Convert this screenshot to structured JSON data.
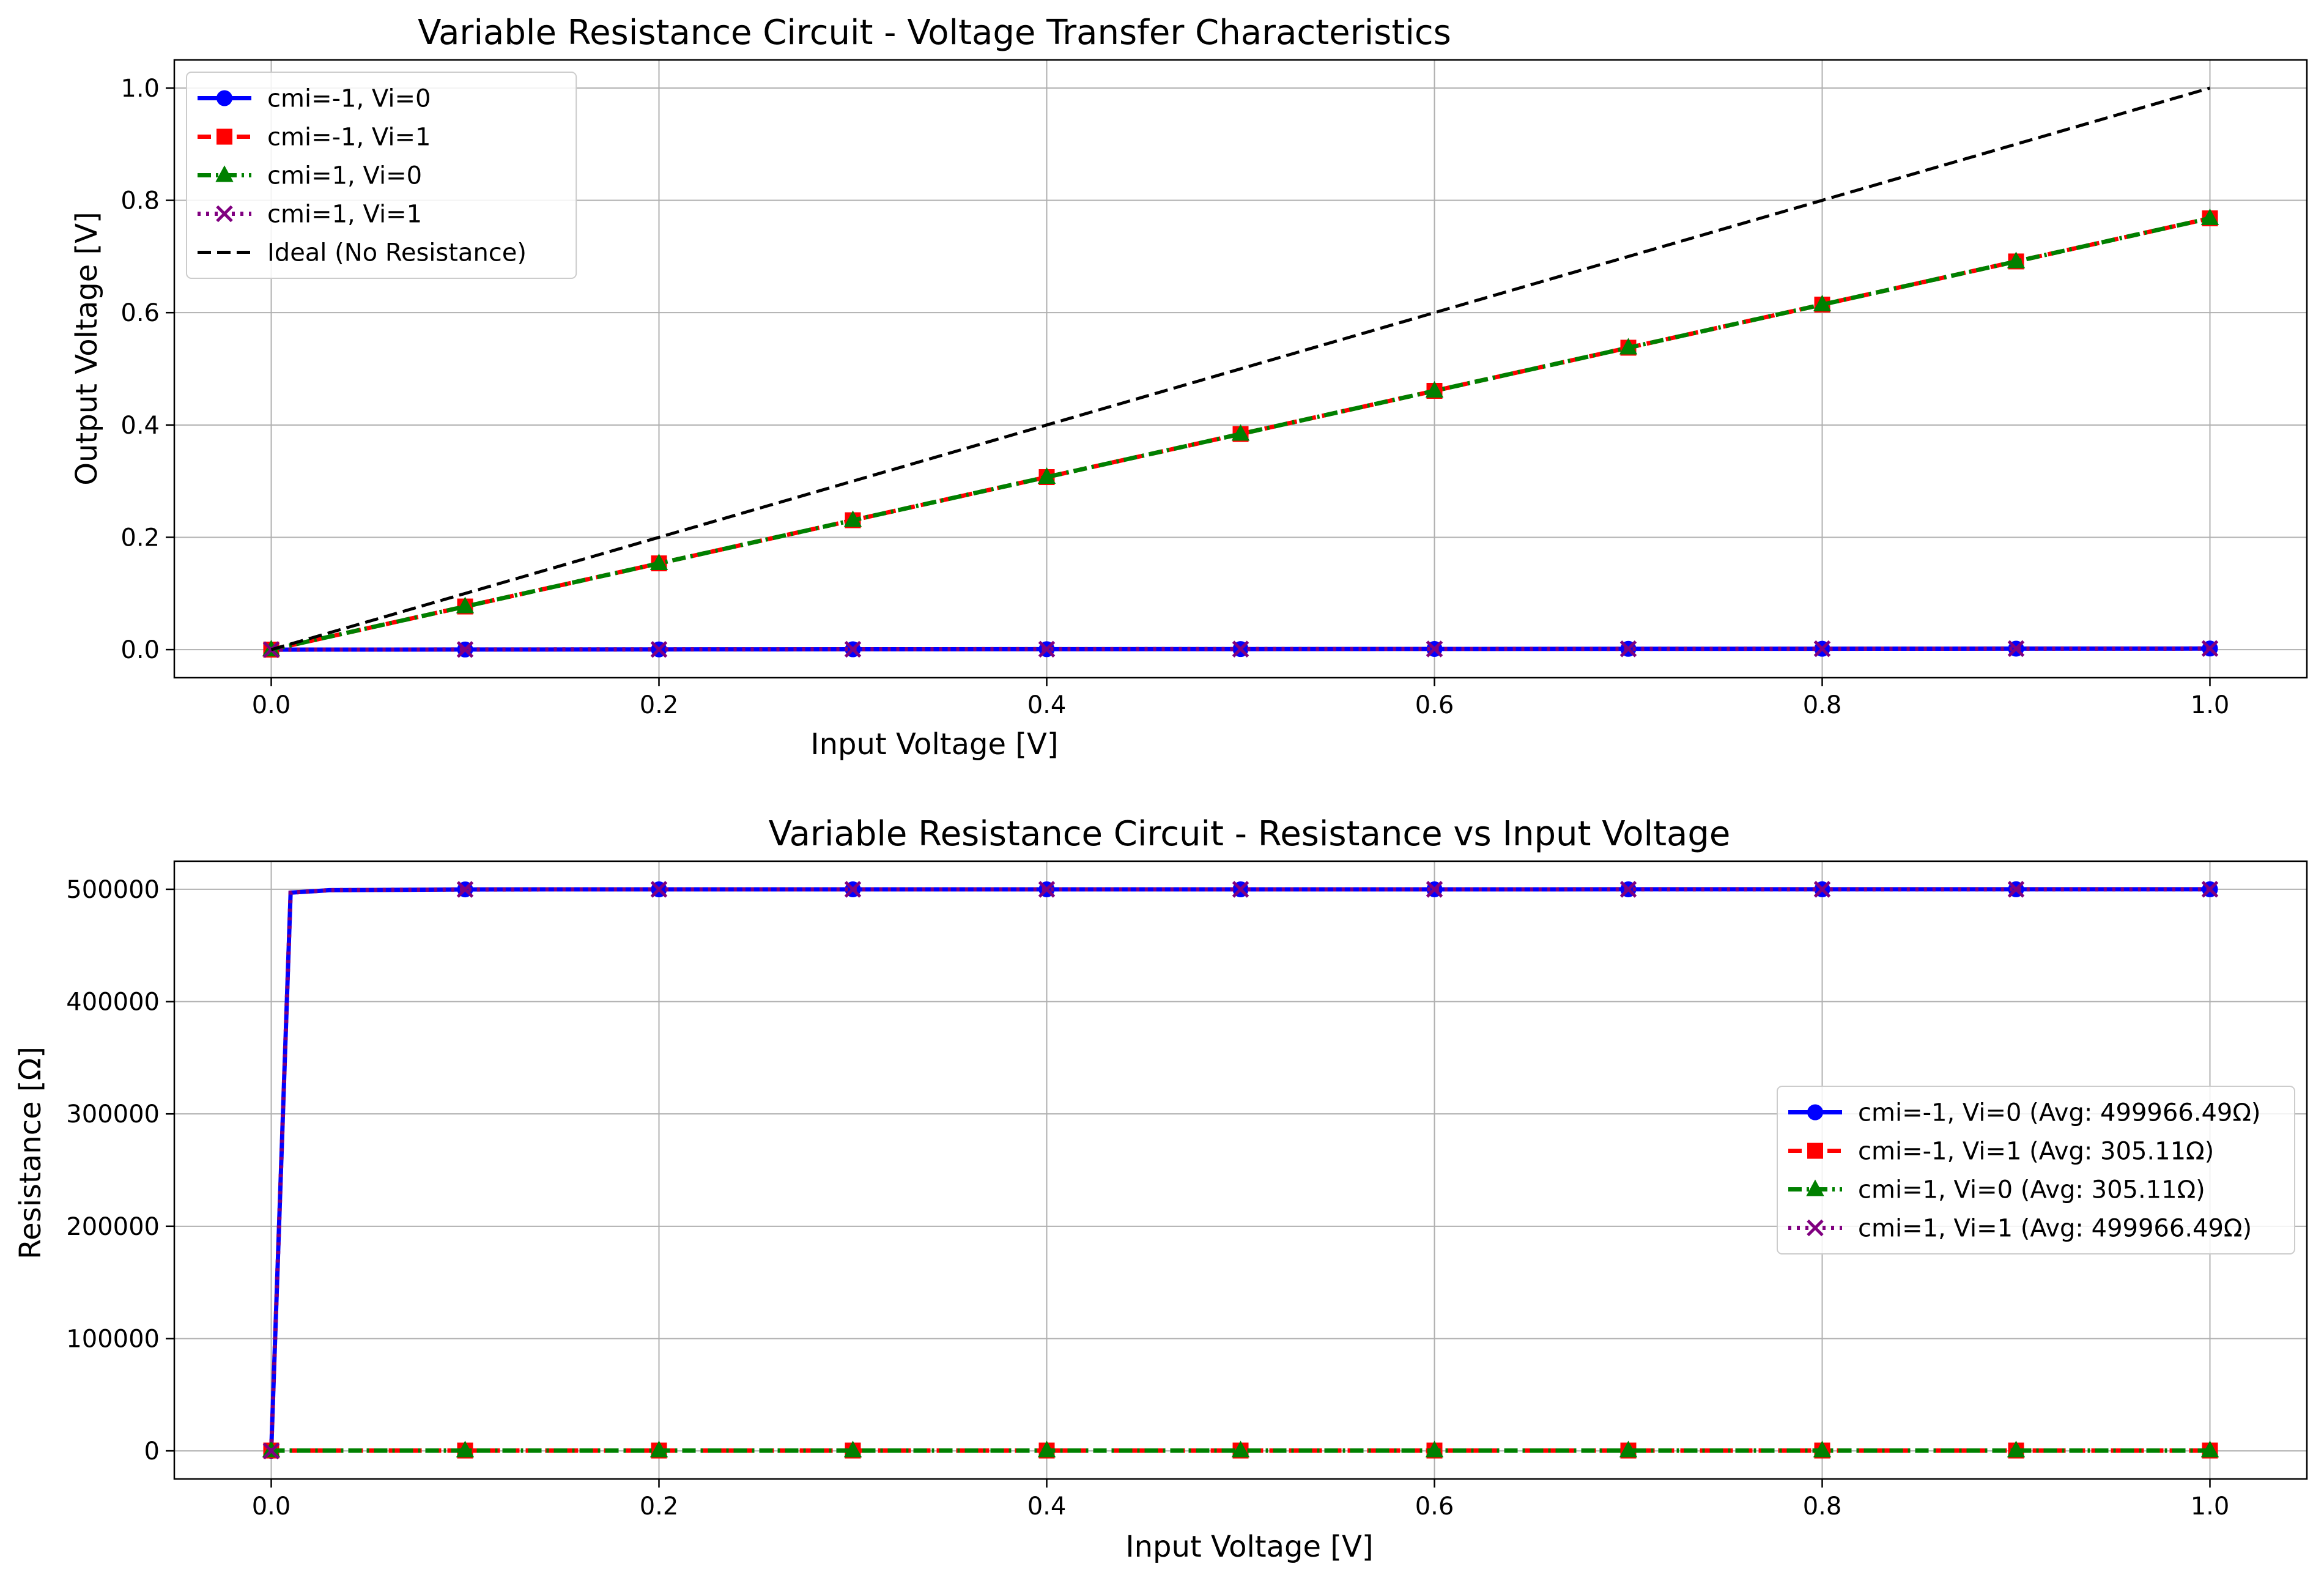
{
  "chart_data": [
    {
      "type": "line",
      "title": "Variable Resistance Circuit - Voltage Transfer Characteristics",
      "xlabel": "Input Voltage [V]",
      "ylabel": "Output Voltage [V]",
      "xlim": [
        -0.05,
        1.05
      ],
      "ylim": [
        -0.05,
        1.05
      ],
      "xticks": [
        0.0,
        0.2,
        0.4,
        0.6,
        0.8,
        1.0
      ],
      "xtick_labels": [
        "0.0",
        "0.2",
        "0.4",
        "0.6",
        "0.8",
        "1.0"
      ],
      "yticks": [
        0.0,
        0.2,
        0.4,
        0.6,
        0.8,
        1.0
      ],
      "ytick_labels": [
        "0.0",
        "0.2",
        "0.4",
        "0.6",
        "0.8",
        "1.0"
      ],
      "grid": true,
      "legend_position": "upper-left",
      "series": [
        {
          "name": "cmi=-1, Vi=0",
          "color": "#0000ff",
          "marker": "circle",
          "linestyle": "solid",
          "x": [
            0.0,
            0.1,
            0.2,
            0.3,
            0.4,
            0.5,
            0.6,
            0.7,
            0.8,
            0.9,
            1.0
          ],
          "y": [
            0.0,
            0.0002,
            0.0004,
            0.0006,
            0.0008,
            0.001,
            0.0012,
            0.0014,
            0.0016,
            0.0018,
            0.002
          ]
        },
        {
          "name": "cmi=-1, Vi=1",
          "color": "#ff0000",
          "marker": "square",
          "linestyle": "dashed",
          "x": [
            0.0,
            0.1,
            0.2,
            0.3,
            0.4,
            0.5,
            0.6,
            0.7,
            0.8,
            0.9,
            1.0
          ],
          "y": [
            0.0,
            0.0768,
            0.1536,
            0.2304,
            0.3072,
            0.384,
            0.4608,
            0.5376,
            0.6144,
            0.6912,
            0.768
          ]
        },
        {
          "name": "cmi=1, Vi=0",
          "color": "#008000",
          "marker": "triangle",
          "linestyle": "dashdot",
          "x": [
            0.0,
            0.1,
            0.2,
            0.3,
            0.4,
            0.5,
            0.6,
            0.7,
            0.8,
            0.9,
            1.0
          ],
          "y": [
            0.0,
            0.0768,
            0.1536,
            0.2304,
            0.3072,
            0.384,
            0.4608,
            0.5376,
            0.6144,
            0.6912,
            0.768
          ]
        },
        {
          "name": "cmi=1, Vi=1",
          "color": "#800080",
          "marker": "x",
          "linestyle": "dotted",
          "x": [
            0.0,
            0.1,
            0.2,
            0.3,
            0.4,
            0.5,
            0.6,
            0.7,
            0.8,
            0.9,
            1.0
          ],
          "y": [
            0.0,
            0.0002,
            0.0004,
            0.0006,
            0.0008,
            0.001,
            0.0012,
            0.0014,
            0.0016,
            0.0018,
            0.002
          ]
        },
        {
          "name": "Ideal (No Resistance)",
          "color": "#000000",
          "marker": "none",
          "linestyle": "dashed",
          "x": [
            0.0,
            1.0
          ],
          "y": [
            0.0,
            1.0
          ]
        }
      ]
    },
    {
      "type": "line",
      "title": "Variable Resistance Circuit - Resistance vs Input Voltage",
      "xlabel": "Input Voltage [V]",
      "ylabel": "Resistance [Ω]",
      "xlim": [
        -0.05,
        1.05
      ],
      "ylim": [
        -25000,
        525000
      ],
      "xticks": [
        0.0,
        0.2,
        0.4,
        0.6,
        0.8,
        1.0
      ],
      "xtick_labels": [
        "0.0",
        "0.2",
        "0.4",
        "0.6",
        "0.8",
        "1.0"
      ],
      "yticks": [
        0,
        100000,
        200000,
        300000,
        400000,
        500000
      ],
      "ytick_labels": [
        "0",
        "100000",
        "200000",
        "300000",
        "400000",
        "500000"
      ],
      "grid": true,
      "legend_position": "center-right",
      "series": [
        {
          "name": "cmi=-1, Vi=0 (Avg: 499966.49Ω)",
          "color": "#0000ff",
          "marker": "circle",
          "linestyle": "solid",
          "x": [
            0.0,
            0.01,
            0.03,
            0.1,
            0.2,
            0.3,
            0.4,
            0.5,
            0.6,
            0.7,
            0.8,
            0.9,
            1.0
          ],
          "y": [
            0,
            497000,
            499200,
            499900,
            499950,
            499960,
            499965,
            499970,
            499975,
            499980,
            499985,
            499990,
            499995
          ],
          "marker_x": [
            0.0,
            0.1,
            0.2,
            0.3,
            0.4,
            0.5,
            0.6,
            0.7,
            0.8,
            0.9,
            1.0
          ],
          "marker_y": [
            0,
            499900,
            499950,
            499960,
            499965,
            499970,
            499975,
            499980,
            499985,
            499990,
            499995
          ]
        },
        {
          "name": "cmi=-1, Vi=1 (Avg: 305.11Ω)",
          "color": "#ff0000",
          "marker": "square",
          "linestyle": "dashed",
          "x": [
            0.0,
            0.1,
            0.2,
            0.3,
            0.4,
            0.5,
            0.6,
            0.7,
            0.8,
            0.9,
            1.0
          ],
          "y": [
            300,
            302,
            303,
            304,
            305,
            305,
            306,
            306,
            307,
            307,
            308
          ]
        },
        {
          "name": "cmi=1, Vi=0 (Avg: 305.11Ω)",
          "color": "#008000",
          "marker": "triangle",
          "linestyle": "dashdot",
          "x": [
            0.0,
            0.1,
            0.2,
            0.3,
            0.4,
            0.5,
            0.6,
            0.7,
            0.8,
            0.9,
            1.0
          ],
          "y": [
            300,
            302,
            303,
            304,
            305,
            305,
            306,
            306,
            307,
            307,
            308
          ]
        },
        {
          "name": "cmi=1, Vi=1 (Avg: 499966.49Ω)",
          "color": "#800080",
          "marker": "x",
          "linestyle": "dotted",
          "x": [
            0.0,
            0.01,
            0.03,
            0.1,
            0.2,
            0.3,
            0.4,
            0.5,
            0.6,
            0.7,
            0.8,
            0.9,
            1.0
          ],
          "y": [
            0,
            497000,
            499200,
            499900,
            499950,
            499960,
            499965,
            499970,
            499975,
            499980,
            499985,
            499990,
            499995
          ],
          "marker_x": [
            0.0,
            0.1,
            0.2,
            0.3,
            0.4,
            0.5,
            0.6,
            0.7,
            0.8,
            0.9,
            1.0
          ],
          "marker_y": [
            0,
            499900,
            499950,
            499960,
            499965,
            499970,
            499975,
            499980,
            499985,
            499990,
            499995
          ]
        }
      ]
    }
  ]
}
